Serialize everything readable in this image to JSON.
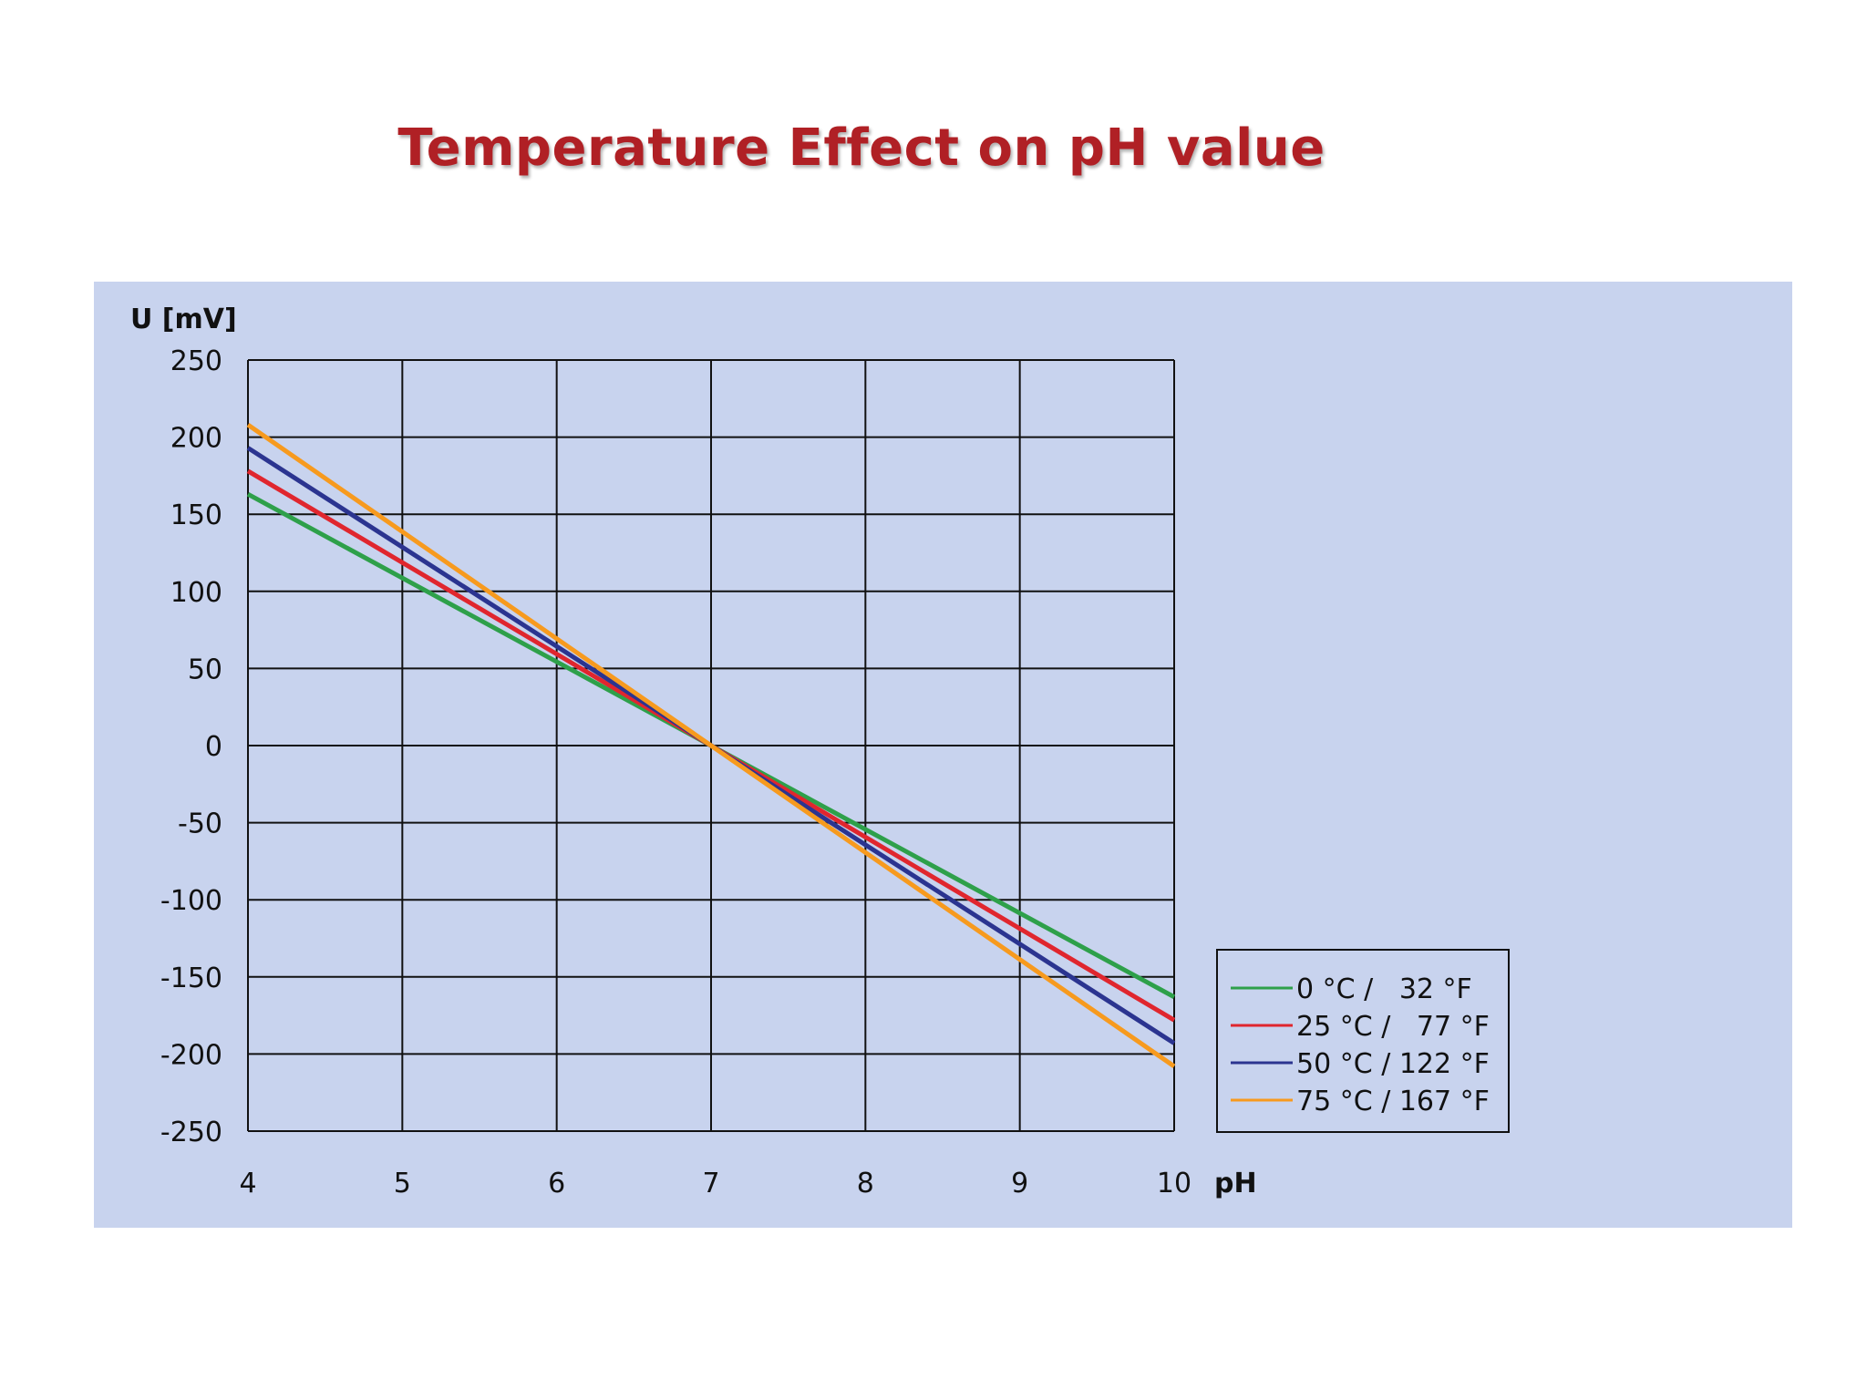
{
  "chart_data": {
    "type": "line",
    "title": "Temperature Effect on pH value",
    "xlabel": "pH",
    "ylabel": "U [mV]",
    "xlim": [
      4,
      10
    ],
    "ylim": [
      -250,
      250
    ],
    "x_ticks": [
      4,
      5,
      6,
      7,
      8,
      9,
      10
    ],
    "y_ticks": [
      250,
      200,
      150,
      100,
      50,
      0,
      -50,
      -100,
      -150,
      -200,
      -250
    ],
    "grid": true,
    "legend_position": "right",
    "background_color": "#c8d3ee",
    "series": [
      {
        "name": "0 °C /   32 °F",
        "color": "#2ea04a",
        "x": [
          4,
          10
        ],
        "y": [
          163,
          -163
        ]
      },
      {
        "name": "25 °C /   77 °F",
        "color": "#e0262e",
        "x": [
          4,
          10
        ],
        "y": [
          178,
          -178
        ]
      },
      {
        "name": "50 °C / 122 °F",
        "color": "#2b3490",
        "x": [
          4,
          10
        ],
        "y": [
          193,
          -193
        ]
      },
      {
        "name": "75 °C / 167 °F",
        "color": "#f79a1e",
        "x": [
          4,
          10
        ],
        "y": [
          208,
          -208
        ]
      }
    ]
  }
}
